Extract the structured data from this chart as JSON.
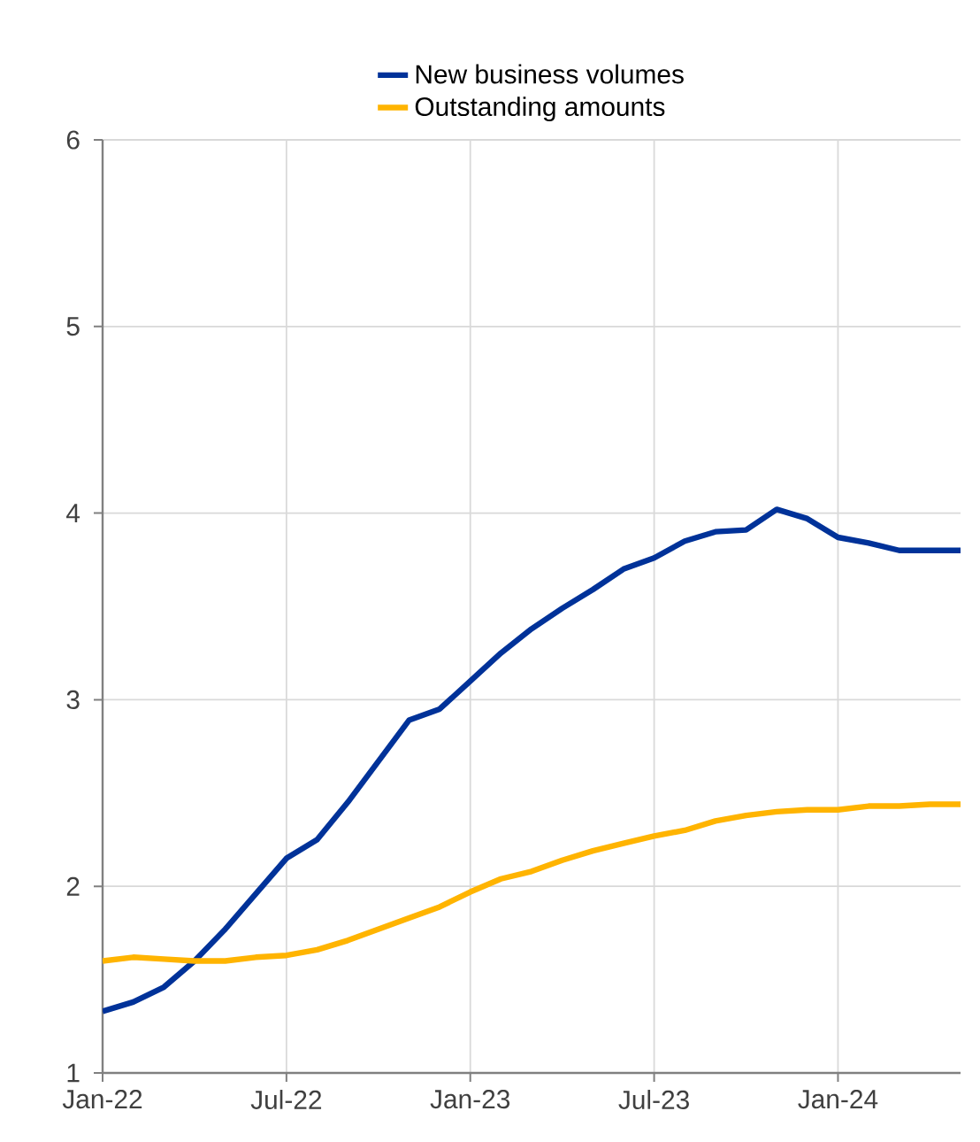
{
  "chart_data": {
    "type": "line",
    "x": [
      "2022-01",
      "2022-02",
      "2022-03",
      "2022-04",
      "2022-05",
      "2022-06",
      "2022-07",
      "2022-08",
      "2022-09",
      "2022-10",
      "2022-11",
      "2022-12",
      "2023-01",
      "2023-02",
      "2023-03",
      "2023-04",
      "2023-05",
      "2023-06",
      "2023-07",
      "2023-08",
      "2023-09",
      "2023-10",
      "2023-11",
      "2023-12",
      "2024-01",
      "2024-02",
      "2024-03",
      "2024-04",
      "2024-05"
    ],
    "series": [
      {
        "name": "New business volumes",
        "color": "#003299",
        "values": [
          1.33,
          1.38,
          1.46,
          1.6,
          1.77,
          1.96,
          2.15,
          2.25,
          2.45,
          2.67,
          2.89,
          2.95,
          3.1,
          3.25,
          3.38,
          3.49,
          3.59,
          3.7,
          3.76,
          3.85,
          3.9,
          3.91,
          4.02,
          3.97,
          3.87,
          3.84,
          3.8,
          3.8,
          3.8
        ]
      },
      {
        "name": "Outstanding amounts",
        "color": "#ffb400",
        "values": [
          1.6,
          1.62,
          1.61,
          1.6,
          1.6,
          1.62,
          1.63,
          1.66,
          1.71,
          1.77,
          1.83,
          1.89,
          1.97,
          2.04,
          2.08,
          2.14,
          2.19,
          2.23,
          2.27,
          2.3,
          2.35,
          2.38,
          2.4,
          2.41,
          2.41,
          2.43,
          2.43,
          2.44,
          2.44
        ]
      }
    ],
    "xlim": [
      "2022-01",
      "2024-05"
    ],
    "xticks": [
      {
        "value": "2022-01",
        "label": "Jan-22"
      },
      {
        "value": "2022-07",
        "label": "Jul-22"
      },
      {
        "value": "2023-01",
        "label": "Jan-23"
      },
      {
        "value": "2023-07",
        "label": "Jul-23"
      },
      {
        "value": "2024-01",
        "label": "Jan-24"
      }
    ],
    "ylim": [
      1,
      6
    ],
    "yticks": [
      1,
      2,
      3,
      4,
      5,
      6
    ],
    "grid": true,
    "legend": "top",
    "marker": "none",
    "line_style": "solid"
  }
}
